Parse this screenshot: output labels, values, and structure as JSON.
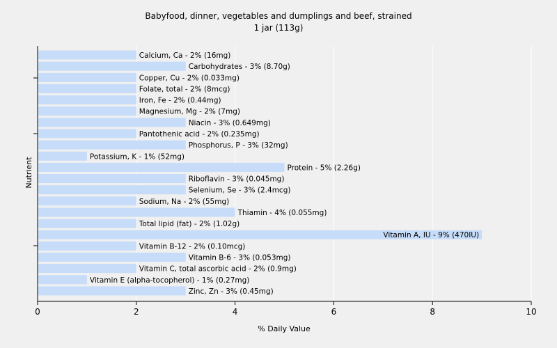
{
  "chart_data": {
    "type": "bar",
    "orientation": "horizontal",
    "title": "Babyfood, dinner, vegetables and dumplings and beef, strained",
    "subtitle": "1 jar (113g)",
    "xlabel": "% Daily Value",
    "ylabel": "Nutrient",
    "xlim": [
      0,
      10
    ],
    "xticks": [
      0,
      2,
      4,
      6,
      8,
      10
    ],
    "grid": true,
    "bar_color": "#c6dcf8",
    "categories": [
      "Calcium, Ca",
      "Carbohydrates",
      "Copper, Cu",
      "Folate, total",
      "Iron, Fe",
      "Magnesium, Mg",
      "Niacin",
      "Pantothenic acid",
      "Phosphorus, P",
      "Potassium, K",
      "Protein",
      "Riboflavin",
      "Selenium, Se",
      "Sodium, Na",
      "Thiamin",
      "Total lipid (fat)",
      "Vitamin A, IU",
      "Vitamin B-12",
      "Vitamin B-6",
      "Vitamin C, total ascorbic acid",
      "Vitamin E (alpha-tocopherol)",
      "Zinc, Zn"
    ],
    "values": [
      2,
      3,
      2,
      2,
      2,
      2,
      3,
      2,
      3,
      1,
      5,
      3,
      3,
      2,
      4,
      2,
      9,
      2,
      3,
      2,
      1,
      3
    ],
    "labels": [
      "Calcium, Ca - 2% (16mg)",
      "Carbohydrates - 3% (8.70g)",
      "Copper, Cu - 2% (0.033mg)",
      "Folate, total - 2% (8mcg)",
      "Iron, Fe - 2% (0.44mg)",
      "Magnesium, Mg - 2% (7mg)",
      "Niacin - 3% (0.649mg)",
      "Pantothenic acid - 2% (0.235mg)",
      "Phosphorus, P - 3% (32mg)",
      "Potassium, K - 1% (52mg)",
      "Protein - 5% (2.26g)",
      "Riboflavin - 3% (0.045mg)",
      "Selenium, Se - 3% (2.4mcg)",
      "Sodium, Na - 2% (55mg)",
      "Thiamin - 4% (0.055mg)",
      "Total lipid (fat) - 2% (1.02g)",
      "Vitamin A, IU - 9% (470IU)",
      "Vitamin B-12 - 2% (0.10mcg)",
      "Vitamin B-6 - 3% (0.053mg)",
      "Vitamin C, total ascorbic acid - 2% (0.9mg)",
      "Vitamin E (alpha-tocopherol) - 1% (0.27mg)",
      "Zinc, Zn - 3% (0.45mg)"
    ]
  }
}
